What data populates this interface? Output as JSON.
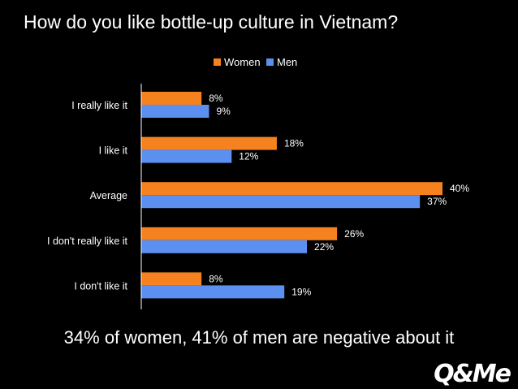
{
  "slide": {
    "title": "How do you like bottle-up culture in Vietnam?",
    "footnote": "34% of women, 41% of men are negative about it",
    "logo_text": "Q&Me"
  },
  "chart_data": {
    "type": "bar",
    "orientation": "horizontal",
    "title": "",
    "xlabel": "",
    "ylabel": "",
    "xlim": [
      0,
      40
    ],
    "grid": false,
    "legend_position": "top",
    "categories": [
      "I really like it",
      "I like it",
      "Average",
      "I don't really like it",
      "I don't like it"
    ],
    "series": [
      {
        "name": "Women",
        "color": "#F5821F",
        "values": [
          8,
          18,
          40,
          26,
          8
        ],
        "labels": [
          "8%",
          "18%",
          "40%",
          "26%",
          "8%"
        ]
      },
      {
        "name": "Men",
        "color": "#5B8FF0",
        "values": [
          9,
          12,
          37,
          22,
          19
        ],
        "labels": [
          "9%",
          "12%",
          "37%",
          "22%",
          "19%"
        ]
      }
    ]
  }
}
